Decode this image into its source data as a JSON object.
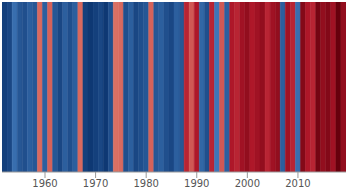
{
  "chart_data": {
    "type": "heatmap",
    "x": [
      1952,
      1953,
      1954,
      1955,
      1956,
      1957,
      1958,
      1959,
      1960,
      1961,
      1962,
      1963,
      1964,
      1965,
      1966,
      1967,
      1968,
      1969,
      1970,
      1971,
      1972,
      1973,
      1974,
      1975,
      1976,
      1977,
      1978,
      1979,
      1980,
      1981,
      1982,
      1983,
      1984,
      1985,
      1986,
      1987,
      1988,
      1989,
      1990,
      1991,
      1992,
      1993,
      1994,
      1995,
      1996,
      1997,
      1998,
      1999,
      2000,
      2001,
      2002,
      2003,
      2004,
      2005,
      2006,
      2007,
      2008,
      2009,
      2010,
      2011,
      2012,
      2013,
      2014,
      2015,
      2016,
      2017,
      2018,
      2019
    ],
    "values": [
      -0.5,
      -0.45,
      -0.2,
      -0.35,
      -0.4,
      -0.3,
      -0.35,
      0.1,
      -0.3,
      0.12,
      -0.35,
      -0.45,
      -0.3,
      -0.4,
      -0.3,
      0.1,
      -0.5,
      -0.55,
      -0.5,
      -0.45,
      -0.55,
      -0.4,
      0.08,
      0.1,
      -0.4,
      -0.3,
      -0.45,
      -0.4,
      -0.35,
      0.12,
      -0.35,
      -0.3,
      -0.4,
      -0.45,
      -0.3,
      -0.35,
      0.3,
      0.15,
      0.35,
      -0.25,
      -0.4,
      0.3,
      -0.15,
      0.15,
      -0.3,
      0.35,
      0.3,
      0.4,
      0.45,
      0.35,
      0.4,
      0.45,
      0.3,
      0.4,
      0.45,
      -0.3,
      0.4,
      0.3,
      -0.2,
      0.5,
      0.35,
      0.3,
      0.55,
      0.45,
      0.5,
      0.4,
      0.6,
      0.45
    ],
    "color_range": [
      -0.6,
      0.6
    ],
    "xlim": [
      1951.5,
      2019.5
    ],
    "xticks": [
      1960,
      1970,
      1980,
      1990,
      2000,
      2010
    ],
    "tick_labels": "x"
  }
}
